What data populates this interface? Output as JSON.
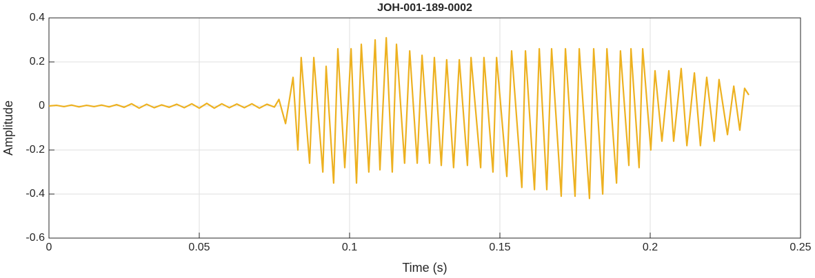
{
  "chart_data": {
    "type": "line",
    "title": "JOH-001-189-0002",
    "xlabel": "Time (s)",
    "ylabel": "Amplitude",
    "xlim": [
      0,
      0.25
    ],
    "ylim": [
      -0.6,
      0.4
    ],
    "xticks": [
      0,
      0.05,
      0.1,
      0.15,
      0.2,
      0.25
    ],
    "yticks": [
      -0.6,
      -0.4,
      -0.2,
      0,
      0.2,
      0.4
    ],
    "grid": true,
    "x": [
      0,
      0.0025,
      0.005,
      0.0075,
      0.01,
      0.0125,
      0.015,
      0.0175,
      0.02,
      0.0225,
      0.025,
      0.0275,
      0.03,
      0.0325,
      0.035,
      0.0375,
      0.04,
      0.0425,
      0.045,
      0.0475,
      0.05,
      0.0525,
      0.055,
      0.0575,
      0.06,
      0.0625,
      0.065,
      0.0675,
      0.07,
      0.0725,
      0.075,
      0.0765,
      0.0787,
      0.0812,
      0.0828,
      0.0839,
      0.0867,
      0.0881,
      0.0911,
      0.0922,
      0.0947,
      0.0961,
      0.0984,
      0.1005,
      0.1023,
      0.1039,
      0.1064,
      0.1085,
      0.1101,
      0.1122,
      0.1142,
      0.1156,
      0.1183,
      0.12,
      0.1225,
      0.1241,
      0.1266,
      0.1282,
      0.1305,
      0.1323,
      0.1346,
      0.1365,
      0.1392,
      0.1404,
      0.1436,
      0.1447,
      0.1477,
      0.1489,
      0.1523,
      0.1539,
      0.1573,
      0.1585,
      0.1615,
      0.1631,
      0.1656,
      0.1672,
      0.1704,
      0.1718,
      0.175,
      0.1764,
      0.1798,
      0.1812,
      0.1842,
      0.1856,
      0.1888,
      0.1901,
      0.1929,
      0.1936,
      0.1963,
      0.1975,
      0.2002,
      0.2016,
      0.2039,
      0.2062,
      0.2078,
      0.2103,
      0.2122,
      0.2147,
      0.2167,
      0.2188,
      0.2213,
      0.2229,
      0.2257,
      0.2278,
      0.2298,
      0.2314,
      0.2328
    ],
    "series": [
      {
        "name": "Amplitude",
        "color": "#EDB120",
        "values": [
          0,
          0.003,
          -0.003,
          0.004,
          -0.004,
          0.003,
          -0.003,
          0.004,
          -0.004,
          0.006,
          -0.006,
          0.01,
          -0.01,
          0.008,
          -0.008,
          0.005,
          -0.006,
          0.008,
          -0.008,
          0.01,
          -0.01,
          0.012,
          -0.01,
          0.01,
          -0.008,
          0.009,
          -0.008,
          0.01,
          -0.01,
          0.008,
          -0.005,
          0.03,
          -0.08,
          0.13,
          -0.2,
          0.22,
          -0.26,
          0.22,
          -0.3,
          0.18,
          -0.35,
          0.26,
          -0.28,
          0.26,
          -0.35,
          0.28,
          -0.3,
          0.3,
          -0.29,
          0.31,
          -0.3,
          0.28,
          -0.26,
          0.25,
          -0.26,
          0.23,
          -0.26,
          0.22,
          -0.27,
          0.21,
          -0.28,
          0.21,
          -0.27,
          0.22,
          -0.28,
          0.22,
          -0.3,
          0.22,
          -0.32,
          0.25,
          -0.37,
          0.25,
          -0.38,
          0.26,
          -0.38,
          0.26,
          -0.41,
          0.26,
          -0.41,
          0.26,
          -0.42,
          0.26,
          -0.4,
          0.26,
          -0.35,
          0.25,
          -0.27,
          0.26,
          -0.28,
          0.26,
          -0.2,
          0.16,
          -0.16,
          0.16,
          -0.16,
          0.17,
          -0.18,
          0.15,
          -0.18,
          0.13,
          -0.16,
          0.12,
          -0.13,
          0.09,
          -0.11,
          0.08,
          0.05
        ]
      }
    ]
  }
}
